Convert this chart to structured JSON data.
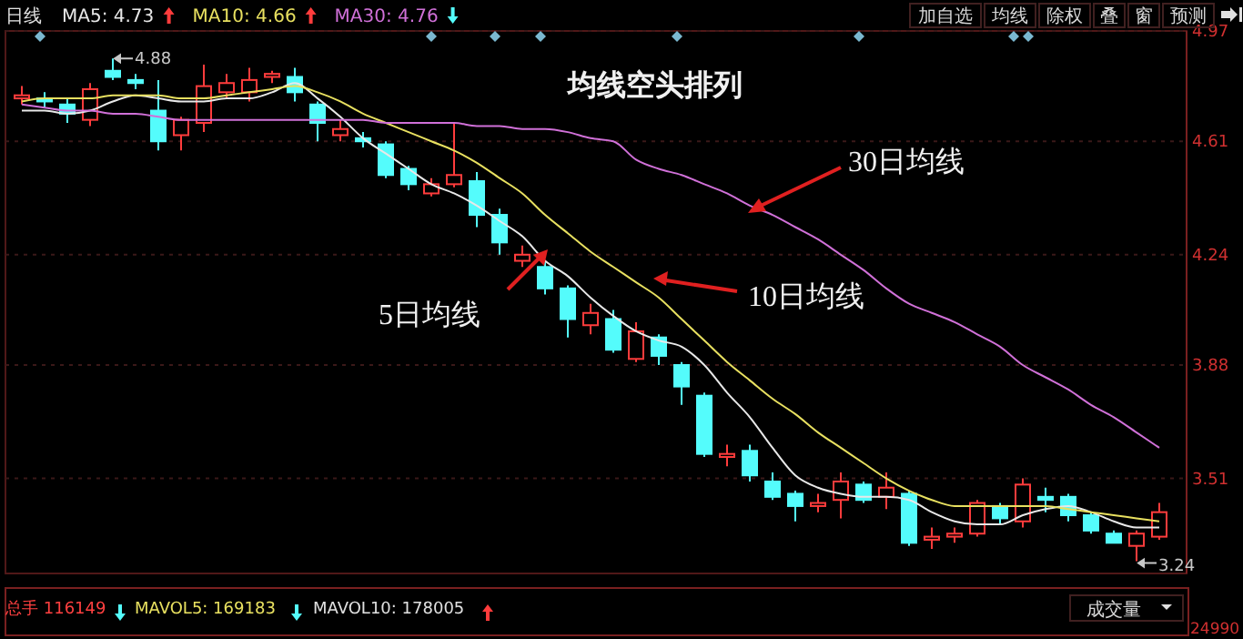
{
  "chart_data": {
    "type": "candlestick",
    "title": "均线空头排列",
    "categories": [
      null,
      null,
      null,
      null,
      null,
      null,
      null,
      null,
      null,
      null,
      null,
      null,
      null,
      null,
      null,
      null,
      null,
      null,
      null,
      null,
      null,
      null,
      null,
      null,
      null,
      null,
      null,
      null,
      null,
      null,
      null,
      null,
      null,
      null,
      null,
      null,
      null,
      null,
      null,
      null,
      null,
      null,
      null,
      null,
      null,
      null,
      null,
      null,
      null,
      null,
      null
    ],
    "ohlc": [
      [
        4.75,
        4.79,
        4.73,
        4.76
      ],
      [
        4.75,
        4.77,
        4.72,
        4.74
      ],
      [
        4.73,
        4.75,
        4.67,
        4.7
      ],
      [
        4.68,
        4.8,
        4.66,
        4.78
      ],
      [
        4.84,
        4.88,
        4.81,
        4.82
      ],
      [
        4.81,
        4.83,
        4.78,
        4.8
      ],
      [
        4.71,
        4.81,
        4.58,
        4.61
      ],
      [
        4.63,
        4.69,
        4.58,
        4.68
      ],
      [
        4.67,
        4.86,
        4.64,
        4.79
      ],
      [
        4.77,
        4.83,
        4.75,
        4.8
      ],
      [
        4.77,
        4.85,
        4.74,
        4.81
      ],
      [
        4.82,
        4.84,
        4.8,
        4.83
      ],
      [
        4.82,
        4.85,
        4.74,
        4.77
      ],
      [
        4.73,
        4.74,
        4.61,
        4.67
      ],
      [
        4.63,
        4.68,
        4.61,
        4.65
      ],
      [
        4.62,
        4.64,
        4.59,
        4.61
      ],
      [
        4.6,
        4.61,
        4.49,
        4.5
      ],
      [
        4.52,
        4.53,
        4.45,
        4.47
      ],
      [
        4.44,
        4.49,
        4.43,
        4.47
      ],
      [
        4.47,
        4.67,
        4.46,
        4.5
      ],
      [
        4.48,
        4.51,
        4.33,
        4.37
      ],
      [
        4.37,
        4.39,
        4.24,
        4.28
      ],
      [
        4.22,
        4.27,
        4.2,
        4.24
      ],
      [
        4.2,
        4.22,
        4.11,
        4.13
      ],
      [
        4.13,
        4.14,
        3.97,
        4.03
      ],
      [
        4.01,
        4.08,
        3.98,
        4.05
      ],
      [
        4.03,
        4.06,
        3.92,
        3.93
      ],
      [
        3.9,
        4.02,
        3.89,
        3.99
      ],
      [
        3.97,
        3.98,
        3.88,
        3.91
      ],
      [
        3.88,
        3.89,
        3.75,
        3.81
      ],
      [
        3.78,
        3.79,
        3.58,
        3.59
      ],
      [
        3.58,
        3.62,
        3.55,
        3.59
      ],
      [
        3.6,
        3.62,
        3.5,
        3.52
      ],
      [
        3.5,
        3.53,
        3.44,
        3.45
      ],
      [
        3.46,
        3.47,
        3.37,
        3.42
      ],
      [
        3.42,
        3.46,
        3.4,
        3.43
      ],
      [
        3.44,
        3.53,
        3.38,
        3.5
      ],
      [
        3.49,
        3.5,
        3.43,
        3.44
      ],
      [
        3.45,
        3.53,
        3.41,
        3.48
      ],
      [
        3.46,
        3.47,
        3.29,
        3.3
      ],
      [
        3.31,
        3.35,
        3.28,
        3.32
      ],
      [
        3.32,
        3.35,
        3.3,
        3.33
      ],
      [
        3.33,
        3.44,
        3.32,
        3.43
      ],
      [
        3.42,
        3.43,
        3.36,
        3.38
      ],
      [
        3.37,
        3.51,
        3.35,
        3.49
      ],
      [
        3.45,
        3.48,
        3.4,
        3.44
      ],
      [
        3.45,
        3.46,
        3.37,
        3.39
      ],
      [
        3.39,
        3.4,
        3.33,
        3.34
      ],
      [
        3.33,
        3.34,
        3.3,
        3.3
      ],
      [
        3.29,
        3.34,
        3.24,
        3.33
      ],
      [
        3.32,
        3.43,
        3.31,
        3.4
      ]
    ],
    "colors": [
      "#ff3c3c",
      "#54fcfc",
      "#54fcfc",
      "#ff3c3c",
      "#54fcfc",
      "#54fcfc",
      "#54fcfc",
      "#ff3c3c",
      "#ff3c3c",
      "#ff3c3c",
      "#ff3c3c",
      "#ff3c3c",
      "#54fcfc",
      "#54fcfc",
      "#ff3c3c",
      "#54fcfc",
      "#54fcfc",
      "#54fcfc",
      "#ff3c3c",
      "#ff3c3c",
      "#54fcfc",
      "#54fcfc",
      "#ff3c3c",
      "#54fcfc",
      "#54fcfc",
      "#ff3c3c",
      "#54fcfc",
      "#ff3c3c",
      "#54fcfc",
      "#54fcfc",
      "#54fcfc",
      "#ff3c3c",
      "#54fcfc",
      "#54fcfc",
      "#54fcfc",
      "#ff3c3c",
      "#ff3c3c",
      "#54fcfc",
      "#ff3c3c",
      "#54fcfc",
      "#ff3c3c",
      "#ff3c3c",
      "#ff3c3c",
      "#54fcfc",
      "#ff3c3c",
      "#54fcfc",
      "#54fcfc",
      "#54fcfc",
      "#54fcfc",
      "#ff3c3c",
      "#ff3c3c"
    ],
    "series": [
      {
        "name": "MA5: 4.73",
        "type": "line",
        "color": "#e8e8e8",
        "values": [
          4.71,
          4.71,
          4.7,
          4.71,
          4.74,
          4.76,
          4.75,
          4.74,
          4.74,
          4.75,
          4.75,
          4.77,
          4.8,
          4.75,
          4.69,
          4.62,
          4.57,
          4.52,
          4.47,
          4.44,
          4.4,
          4.35,
          4.3,
          4.22,
          4.17,
          4.1,
          4.04,
          3.99,
          3.96,
          3.94,
          3.88,
          3.79,
          3.71,
          3.61,
          3.52,
          3.48,
          3.46,
          3.45,
          3.45,
          3.44,
          3.4,
          3.37,
          3.36,
          3.36,
          3.39,
          3.41,
          3.42,
          3.4,
          3.37,
          3.35,
          3.35
        ]
      },
      {
        "name": "MA10: 4.66",
        "type": "line",
        "color": "#e8e060",
        "values": [
          4.74,
          4.75,
          4.75,
          4.75,
          4.76,
          4.76,
          4.76,
          4.75,
          4.75,
          4.76,
          4.77,
          4.78,
          4.79,
          4.77,
          4.74,
          4.7,
          4.67,
          4.64,
          4.61,
          4.58,
          4.54,
          4.49,
          4.44,
          4.37,
          4.31,
          4.25,
          4.2,
          4.15,
          4.1,
          4.03,
          3.96,
          3.89,
          3.83,
          3.77,
          3.72,
          3.66,
          3.61,
          3.56,
          3.51,
          3.47,
          3.44,
          3.42,
          3.42,
          3.42,
          3.42,
          3.42,
          3.41,
          3.4,
          3.39,
          3.38,
          3.37
        ]
      },
      {
        "name": "MA30: 4.76",
        "type": "line",
        "color": "#d070d8",
        "values": [
          4.73,
          4.72,
          4.71,
          4.71,
          4.7,
          4.7,
          4.69,
          4.68,
          4.68,
          4.68,
          4.68,
          4.68,
          4.68,
          4.68,
          4.68,
          4.68,
          4.67,
          4.67,
          4.67,
          4.67,
          4.66,
          4.66,
          4.65,
          4.65,
          4.64,
          4.62,
          4.61,
          4.55,
          4.52,
          4.5,
          4.47,
          4.44,
          4.4,
          4.37,
          4.33,
          4.29,
          4.24,
          4.19,
          4.13,
          4.08,
          4.05,
          4.02,
          3.98,
          3.94,
          3.88,
          3.84,
          3.8,
          3.75,
          3.71,
          3.66,
          3.61
        ]
      }
    ],
    "ylim": [
      3.2,
      4.97
    ],
    "yticks": [
      4.97,
      4.61,
      4.24,
      3.88,
      3.51
    ],
    "grid": "y",
    "legend": "top left",
    "annotations": [
      "日线",
      "4.88",
      "3.24",
      "30日均线",
      "10日均线",
      "5日均线",
      "加自选",
      "均线",
      "除权",
      "叠",
      "窗",
      "预测",
      "总手 116149",
      "MAVOL5: 169183",
      "MAVOL10: 178005",
      "成交量",
      "24990"
    ]
  }
}
